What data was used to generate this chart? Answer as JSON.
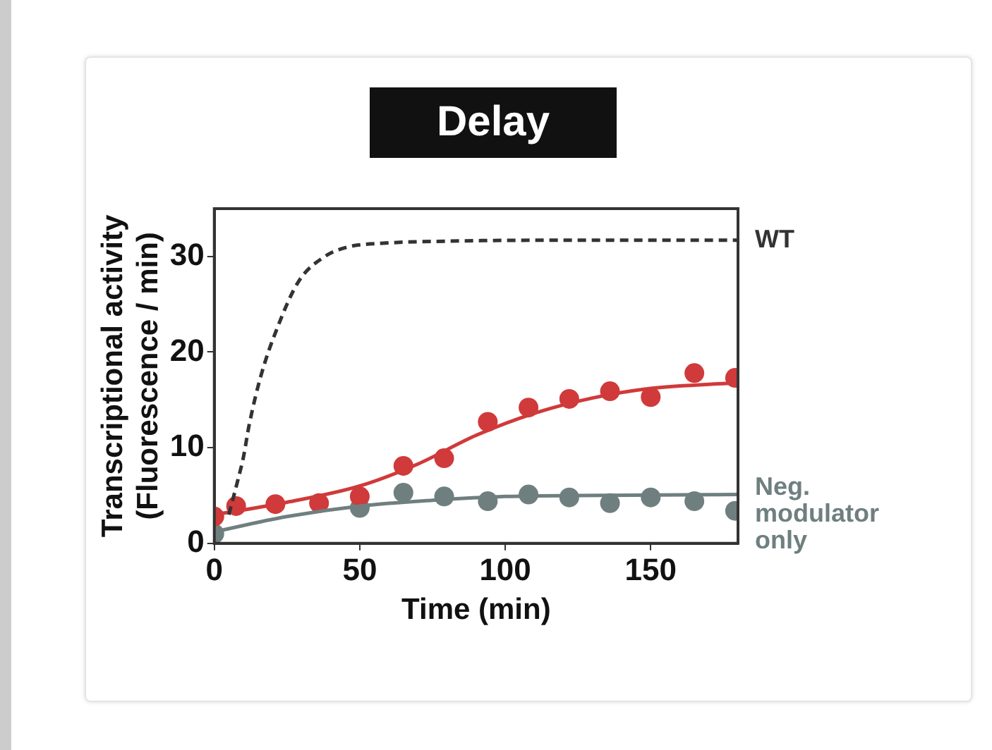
{
  "chart_data": {
    "type": "scatter",
    "title": "Delay",
    "xlabel": "Time (min)",
    "ylabel": "Transcriptional activity\n(Fluorescence / min)",
    "xlim": [
      0,
      180
    ],
    "ylim": [
      0,
      35
    ],
    "xticks": [
      0,
      50,
      100,
      150
    ],
    "yticks": [
      0,
      10,
      20,
      30
    ],
    "grid": false,
    "legend": false,
    "marker": "circle",
    "series": [
      {
        "type": "line",
        "name": "WT",
        "color": "#333333",
        "line_style": "dashed",
        "marker": "none",
        "x": [
          5,
          8,
          10,
          12,
          16,
          22,
          29,
          38,
          46,
          59,
          80,
          120,
          180
        ],
        "values": [
          3,
          6.5,
          9,
          12.4,
          17.5,
          22.8,
          27.4,
          30,
          31,
          31.4,
          31.6,
          31.7,
          31.7
        ]
      },
      {
        "type": "line",
        "color": "#d03a3a",
        "line_style": "solid",
        "marker": "none",
        "x": [
          0,
          25,
          50,
          70,
          90,
          110,
          130,
          150,
          180
        ],
        "values": [
          3.0,
          4.3,
          6.0,
          8.3,
          11.3,
          13.6,
          15.2,
          16.2,
          16.8
        ]
      },
      {
        "type": "line",
        "name": "Neg. modulator only",
        "color": "#6f7f7f",
        "line_style": "solid",
        "marker": "none",
        "x": [
          0,
          25,
          50,
          75,
          100,
          125,
          180
        ],
        "values": [
          1.2,
          2.8,
          3.9,
          4.5,
          4.9,
          5.0,
          5.1
        ]
      },
      {
        "color": "#d03a3a",
        "x": [
          0,
          7.5,
          21,
          36,
          50,
          65,
          79,
          94,
          108,
          122,
          136,
          150,
          165,
          179
        ],
        "values": [
          2.8,
          3.9,
          4.1,
          4.2,
          4.9,
          8.1,
          8.9,
          12.7,
          14.2,
          15.1,
          15.9,
          15.3,
          17.8,
          17.3
        ]
      },
      {
        "color": "#6f7f7f",
        "x": [
          0,
          7.5,
          50,
          65,
          79,
          94,
          108,
          122,
          136,
          150,
          165,
          179
        ],
        "values": [
          1.0,
          null,
          3.7,
          5.3,
          4.9,
          4.4,
          5.1,
          4.8,
          4.2,
          4.8,
          4.4,
          3.4
        ]
      }
    ]
  }
}
